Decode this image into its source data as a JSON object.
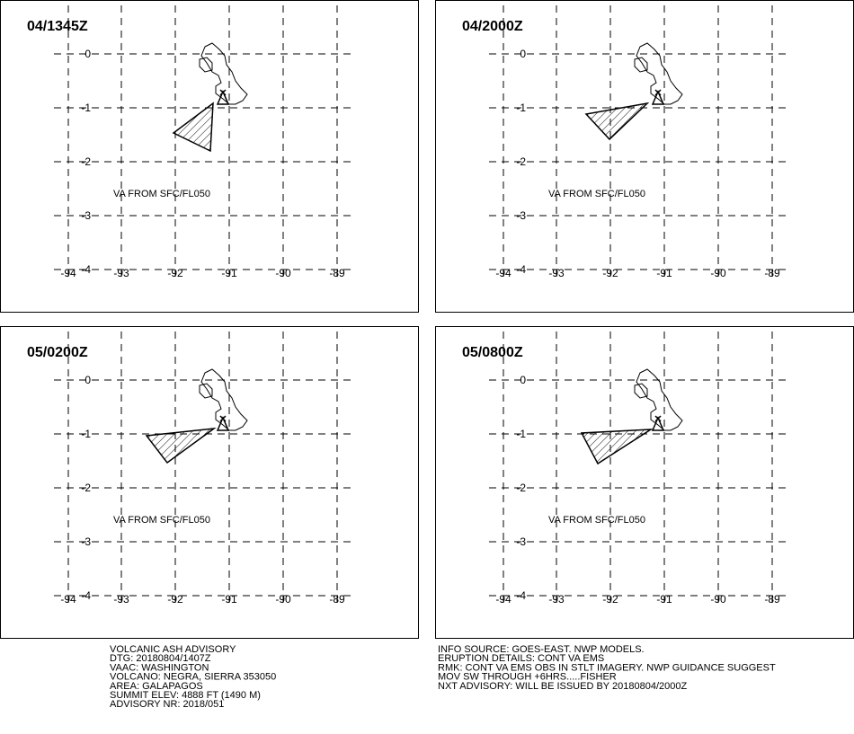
{
  "panels": [
    {
      "title": "04/1345Z",
      "lat_labels": [
        "0",
        "-1",
        "-2",
        "-3",
        "-4"
      ],
      "lon_labels": [
        "-94",
        "-93",
        "-92",
        "-91",
        "-90",
        "-89"
      ],
      "annotation": "VA FROM SFC/FL050"
    },
    {
      "title": "04/2000Z",
      "lat_labels": [
        "0",
        "-1",
        "-2",
        "-3",
        "-4"
      ],
      "lon_labels": [
        "-94",
        "-93",
        "-92",
        "-91",
        "-90",
        "-89"
      ],
      "annotation": "VA FROM SFC/FL050"
    },
    {
      "title": "05/0200Z",
      "lat_labels": [
        "0",
        "-1",
        "-2",
        "-3",
        "-4"
      ],
      "lon_labels": [
        "-94",
        "-93",
        "-92",
        "-91",
        "-90",
        "-89"
      ],
      "annotation": "VA FROM SFC/FL050"
    },
    {
      "title": "05/0800Z",
      "lat_labels": [
        "0",
        "-1",
        "-2",
        "-3",
        "-4"
      ],
      "lon_labels": [
        "-94",
        "-93",
        "-92",
        "-91",
        "-90",
        "-89"
      ],
      "annotation": "VA FROM SFC/FL050"
    }
  ],
  "advisory_left": [
    "VOLCANIC ASH ADVISORY",
    "DTG: 20180804/1407Z",
    "VAAC: WASHINGTON",
    "VOLCANO: NEGRA, SIERRA 353050",
    "AREA: GALAPAGOS",
    "SUMMIT ELEV: 4888 FT (1490 M)",
    "ADVISORY NR: 2018/051"
  ],
  "advisory_right": [
    "INFO SOURCE: GOES-EAST. NWP MODELS.",
    "ERUPTION DETAILS: CONT VA EMS",
    "RMK: CONT VA EMS OBS IN STLT IMAGERY. NWP GUIDANCE SUGGEST",
    "MOV SW THROUGH +6HRS.....FISHER",
    "NXT ADVISORY: WILL BE ISSUED BY 20180804/2000Z"
  ]
}
